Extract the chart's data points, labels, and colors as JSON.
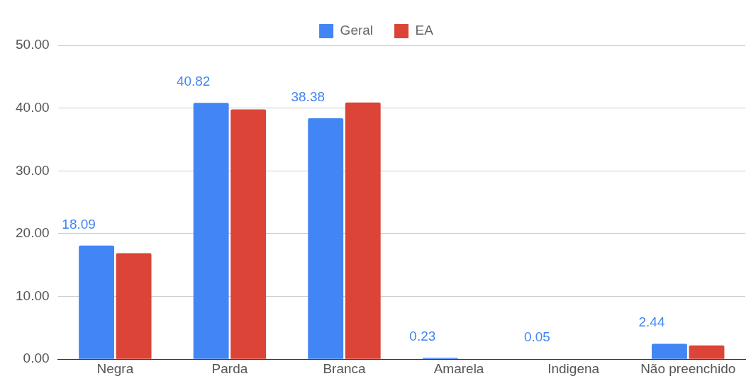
{
  "chart_data": {
    "type": "bar",
    "categories": [
      "Negra",
      "Parda",
      "Branca",
      "Amarela",
      "Indigena",
      "Não preenchido"
    ],
    "series": [
      {
        "name": "Geral",
        "color": "#4285f4",
        "values": [
          18.09,
          40.82,
          38.38,
          0.23,
          0.05,
          2.44
        ],
        "value_labels": [
          "18.09",
          "40.82",
          "38.38",
          "0.23",
          "0.05",
          "2.44"
        ]
      },
      {
        "name": "EA",
        "color": "#db4437",
        "values": [
          16.9,
          39.8,
          40.9,
          0,
          0,
          2.2
        ]
      }
    ],
    "ylim": [
      0,
      50
    ],
    "yticks": [
      {
        "value": 0,
        "label": "0.00"
      },
      {
        "value": 10,
        "label": "10.00"
      },
      {
        "value": 20,
        "label": "20.00"
      },
      {
        "value": 30,
        "label": "30.00"
      },
      {
        "value": 40,
        "label": "40.00"
      },
      {
        "value": 50,
        "label": "50.00"
      }
    ],
    "grid": "y",
    "legend": "top"
  }
}
